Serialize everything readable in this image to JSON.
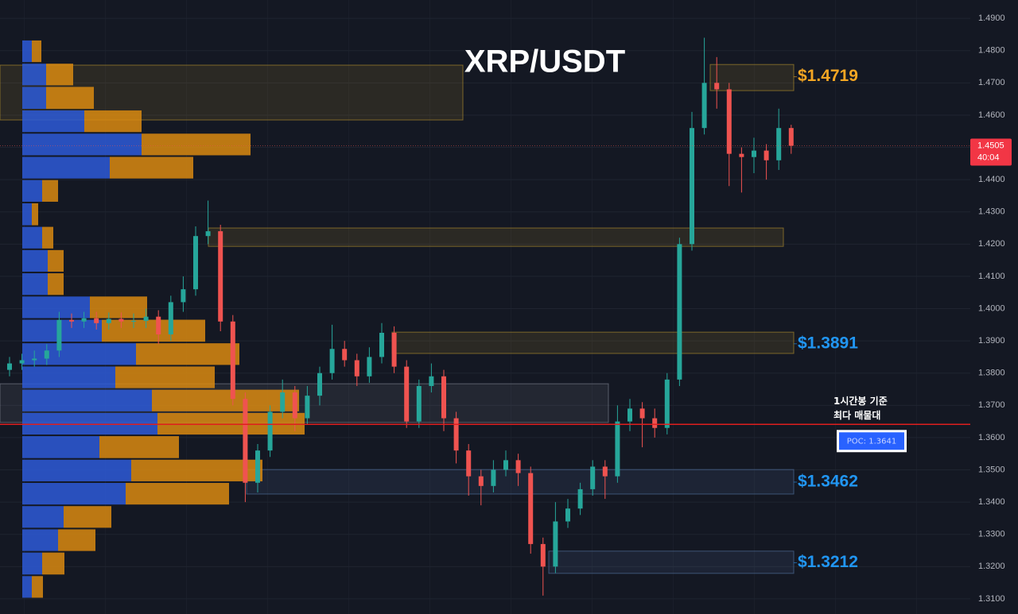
{
  "chart_data": {
    "type": "candlestick",
    "title": "XRP/USDT",
    "ylim": [
      1.3053,
      1.4957
    ],
    "yticks": [
      {
        "value": 1.31,
        "label": "1.3100"
      },
      {
        "value": 1.32,
        "label": "1.3200"
      },
      {
        "value": 1.33,
        "label": "1.3300"
      },
      {
        "value": 1.34,
        "label": "1.3400"
      },
      {
        "value": 1.35,
        "label": "1.3500"
      },
      {
        "value": 1.36,
        "label": "1.3600"
      },
      {
        "value": 1.37,
        "label": "1.3700"
      },
      {
        "value": 1.38,
        "label": "1.3800"
      },
      {
        "value": 1.39,
        "label": "1.3900"
      },
      {
        "value": 1.4,
        "label": "1.4000"
      },
      {
        "value": 1.41,
        "label": "1.4100"
      },
      {
        "value": 1.42,
        "label": "1.4200"
      },
      {
        "value": 1.43,
        "label": "1.4300"
      },
      {
        "value": 1.44,
        "label": "1.4400"
      },
      {
        "value": 1.45,
        "label": "1.4500"
      },
      {
        "value": 1.46,
        "label": "1.4600"
      },
      {
        "value": 1.47,
        "label": "1.4700"
      },
      {
        "value": 1.48,
        "label": "1.4800"
      },
      {
        "value": 1.49,
        "label": "1.4900"
      }
    ],
    "grid": true,
    "up_color": "#26a69a",
    "down_color": "#ef5350",
    "open": [
      1.381,
      1.383,
      1.384,
      1.3845,
      1.387,
      1.3965,
      1.396,
      1.397,
      1.3955,
      1.3968,
      1.396,
      1.3962,
      1.3975,
      1.392,
      1.402,
      1.406,
      1.4225,
      1.424,
      1.396,
      1.372,
      1.346,
      1.356,
      1.368,
      1.374,
      1.366,
      1.373,
      1.38,
      1.3875,
      1.384,
      1.379,
      1.385,
      1.3925,
      1.382,
      1.365,
      1.376,
      1.379,
      1.366,
      1.356,
      1.348,
      1.345,
      1.35,
      1.353,
      1.349,
      1.327,
      1.32,
      1.334,
      1.338,
      1.344,
      1.351,
      1.348,
      1.365,
      1.369,
      1.366,
      1.363,
      1.378,
      1.42,
      1.456,
      1.47,
      1.468,
      1.448,
      1.447,
      1.449,
      1.446,
      1.456
    ],
    "high": [
      1.385,
      1.386,
      1.387,
      1.389,
      1.399,
      1.3985,
      1.399,
      1.399,
      1.3988,
      1.3988,
      1.3985,
      1.4,
      1.3995,
      1.404,
      1.41,
      1.4255,
      1.4335,
      1.426,
      1.398,
      1.374,
      1.358,
      1.37,
      1.378,
      1.376,
      1.376,
      1.382,
      1.395,
      1.39,
      1.386,
      1.388,
      1.3955,
      1.3945,
      1.384,
      1.378,
      1.383,
      1.381,
      1.368,
      1.358,
      1.35,
      1.353,
      1.356,
      1.355,
      1.351,
      1.329,
      1.34,
      1.341,
      1.346,
      1.353,
      1.353,
      1.37,
      1.372,
      1.371,
      1.369,
      1.38,
      1.422,
      1.461,
      1.484,
      1.478,
      1.47,
      1.45,
      1.453,
      1.451,
      1.462,
      1.457
    ],
    "low": [
      1.379,
      1.381,
      1.382,
      1.3825,
      1.385,
      1.394,
      1.394,
      1.3935,
      1.3935,
      1.394,
      1.394,
      1.394,
      1.389,
      1.39,
      1.399,
      1.404,
      1.42,
      1.393,
      1.37,
      1.34,
      1.343,
      1.354,
      1.366,
      1.362,
      1.364,
      1.37,
      1.378,
      1.382,
      1.376,
      1.377,
      1.383,
      1.38,
      1.363,
      1.363,
      1.374,
      1.362,
      1.352,
      1.342,
      1.339,
      1.343,
      1.348,
      1.345,
      1.324,
      1.311,
      1.318,
      1.332,
      1.336,
      1.342,
      1.341,
      1.346,
      1.362,
      1.357,
      1.36,
      1.361,
      1.376,
      1.418,
      1.454,
      1.462,
      1.438,
      1.436,
      1.442,
      1.44,
      1.443,
      1.448
    ],
    "close": [
      1.383,
      1.384,
      1.3845,
      1.387,
      1.3965,
      1.396,
      1.397,
      1.3955,
      1.3968,
      1.396,
      1.3962,
      1.3975,
      1.392,
      1.402,
      1.406,
      1.4225,
      1.424,
      1.396,
      1.372,
      1.346,
      1.356,
      1.368,
      1.374,
      1.366,
      1.373,
      1.38,
      1.3875,
      1.384,
      1.379,
      1.385,
      1.3925,
      1.382,
      1.365,
      1.376,
      1.379,
      1.366,
      1.356,
      1.348,
      1.345,
      1.35,
      1.353,
      1.349,
      1.327,
      1.32,
      1.334,
      1.338,
      1.344,
      1.351,
      1.348,
      1.365,
      1.369,
      1.366,
      1.363,
      1.378,
      1.42,
      1.456,
      1.47,
      1.468,
      1.448,
      1.447,
      1.449,
      1.446,
      1.456,
      1.4505
    ],
    "last_price": 1.4505,
    "countdown": "40:04",
    "volume_profile": {
      "bins": [
        1.4834,
        1.4762,
        1.469,
        1.4617,
        1.4545,
        1.4473,
        1.4401,
        1.4329,
        1.4256,
        1.4184,
        1.4112,
        1.404,
        1.3968,
        1.3895,
        1.3823,
        1.3751,
        1.3679,
        1.3607,
        1.3534,
        1.3462,
        1.339,
        1.3318,
        1.3246,
        1.3173,
        1.3101
      ],
      "buy": [
        12,
        30,
        30,
        78,
        150,
        110,
        25,
        12,
        25,
        32,
        32,
        85,
        100,
        143,
        117,
        163,
        170,
        97,
        137,
        130,
        52,
        45,
        25,
        12
      ],
      "sell": [
        12,
        34,
        60,
        72,
        137,
        105,
        20,
        8,
        14,
        20,
        20,
        72,
        130,
        130,
        125,
        185,
        185,
        100,
        165,
        130,
        60,
        47,
        28,
        14
      ],
      "buy_color": "#2d5bd8",
      "sell_color": "#d98a10"
    },
    "zones": [
      {
        "top": 1.4755,
        "bottom": 1.4585,
        "color": "#c8a030"
      },
      {
        "top": 1.4757,
        "bottom": 1.4676,
        "color": "#c8a030"
      },
      {
        "top": 1.425,
        "bottom": 1.4193,
        "color": "#c8a030"
      },
      {
        "top": 1.3927,
        "bottom": 1.3861,
        "color": "#c8a030"
      },
      {
        "top": 1.3767,
        "bottom": 1.3647,
        "color": "#8a8f9c"
      },
      {
        "top": 1.3501,
        "bottom": 1.3425,
        "color": "#5a7fb0"
      },
      {
        "top": 1.3248,
        "bottom": 1.3179,
        "color": "#5a7fb0"
      }
    ],
    "levels": [
      {
        "value": 1.4719,
        "label": "$1.4719",
        "color": "#f5a623"
      },
      {
        "value": 1.3891,
        "label": "$1.3891",
        "color": "#2196f3"
      },
      {
        "value": 1.3462,
        "label": "$1.3462",
        "color": "#2196f3"
      },
      {
        "value": 1.3212,
        "label": "$1.3212",
        "color": "#2196f3"
      }
    ],
    "poc": {
      "value": 1.3641,
      "label": "POC: 1.3641"
    },
    "annotation": [
      "1시간봉 기준",
      "최다 매물대"
    ]
  }
}
